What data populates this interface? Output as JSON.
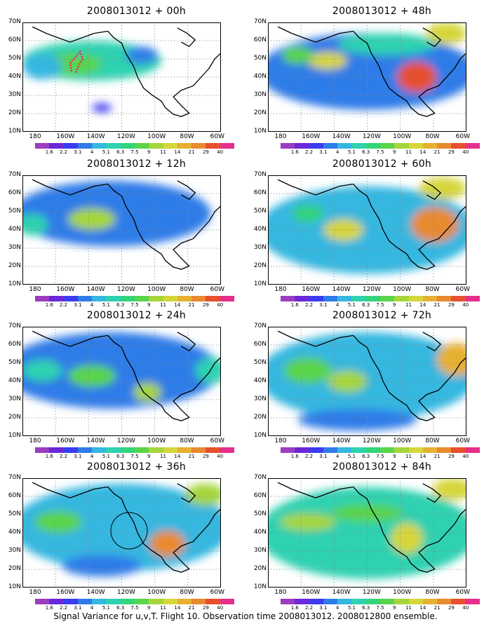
{
  "panels": [
    {
      "title": "2008013012 + 00h"
    },
    {
      "title": "2008013012 + 48h"
    },
    {
      "title": "2008013012 + 12h"
    },
    {
      "title": "2008013012 + 60h"
    },
    {
      "title": "2008013012 + 24h"
    },
    {
      "title": "2008013012 + 72h"
    },
    {
      "title": "2008013012 + 36h"
    },
    {
      "title": "2008013012 + 84h"
    }
  ],
  "lat_labels": [
    "70N",
    "60N",
    "50N",
    "40N",
    "30N",
    "20N",
    "10N"
  ],
  "lon_labels": [
    "180",
    "160W",
    "140W",
    "120W",
    "100W",
    "80W",
    "60W"
  ],
  "colorbar": {
    "labels": [
      "1.6",
      "2.2",
      "3.1",
      "4",
      "5.1",
      "6.3",
      "7.5",
      "9",
      "11",
      "14",
      "21",
      "29",
      "40"
    ],
    "colors": [
      "#9b3dbe",
      "#6a28d8",
      "#3b3bf0",
      "#2f7be8",
      "#35b7e0",
      "#2fd1b0",
      "#33d47a",
      "#5ad44a",
      "#a6d63b",
      "#d6d63a",
      "#e6b033",
      "#e88a2e",
      "#e6502e",
      "#e62e8a"
    ]
  },
  "caption": "Signal Variance for u,v,T. Flight 10. Observation time 2008013012. 2008012800 ensemble."
}
